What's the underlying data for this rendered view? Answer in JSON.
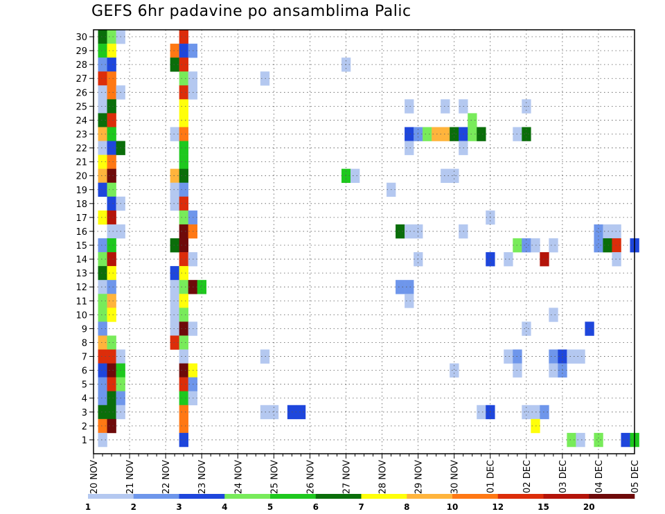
{
  "chart_data": {
    "type": "heatmap",
    "title": "GEFS 6hr padavine po ansamblima Palic",
    "xlabel": "",
    "ylabel": "",
    "y_tick_labels": [
      "1",
      "2",
      "3",
      "4",
      "5",
      "6",
      "7",
      "8",
      "9",
      "10",
      "11",
      "12",
      "13",
      "14",
      "15",
      "16",
      "17",
      "18",
      "19",
      "20",
      "21",
      "22",
      "23",
      "24",
      "25",
      "26",
      "27",
      "28",
      "29",
      "30"
    ],
    "x_tick_labels": [
      "20 NOV",
      "21 NOV",
      "22 NOV",
      "23 NOV",
      "24 NOV",
      "25 NOV",
      "26 NOV",
      "27 NOV",
      "28 NOV",
      "29 NOV",
      "30 NOV",
      "01 DEC",
      "02 DEC",
      "03 DEC",
      "04 DEC",
      "05 DEC"
    ],
    "x_range_steps": [
      0,
      60
    ],
    "y_range_members": [
      0,
      30
    ],
    "grid": true,
    "colorbar": {
      "labels": [
        "1",
        "2",
        "3",
        "4",
        "5",
        "6",
        "7",
        "8",
        "10",
        "12",
        "15",
        "20"
      ],
      "colors": [
        "#b4c8f0",
        "#6e96eb",
        "#1e46dc",
        "#78eb5a",
        "#1ec81e",
        "#0a6e0a",
        "#ffff0a",
        "#ffb43c",
        "#ff7814",
        "#dc2d0a",
        "#b4140a",
        "#6e0a0a"
      ]
    },
    "cells": [
      [
        30,
        1,
        5
      ],
      [
        30,
        2,
        3
      ],
      [
        30,
        3,
        0
      ],
      [
        30,
        10,
        9
      ],
      [
        29,
        1,
        4
      ],
      [
        29,
        2,
        6
      ],
      [
        29,
        9,
        8
      ],
      [
        29,
        10,
        2
      ],
      [
        29,
        11,
        1
      ],
      [
        28,
        1,
        1
      ],
      [
        28,
        2,
        2
      ],
      [
        28,
        9,
        5
      ],
      [
        28,
        10,
        9
      ],
      [
        28,
        28,
        0
      ],
      [
        27,
        1,
        9
      ],
      [
        27,
        2,
        8
      ],
      [
        27,
        10,
        3
      ],
      [
        27,
        11,
        0
      ],
      [
        27,
        19,
        0
      ],
      [
        26,
        1,
        0
      ],
      [
        26,
        2,
        8
      ],
      [
        26,
        3,
        0
      ],
      [
        26,
        10,
        9
      ],
      [
        26,
        11,
        0
      ],
      [
        25,
        1,
        0
      ],
      [
        25,
        2,
        5
      ],
      [
        25,
        10,
        6
      ],
      [
        25,
        35,
        0
      ],
      [
        25,
        39,
        0
      ],
      [
        25,
        41,
        0
      ],
      [
        25,
        48,
        0
      ],
      [
        24,
        1,
        5
      ],
      [
        24,
        2,
        9
      ],
      [
        24,
        10,
        6
      ],
      [
        24,
        42,
        3
      ],
      [
        23,
        1,
        7
      ],
      [
        23,
        2,
        4
      ],
      [
        23,
        9,
        0
      ],
      [
        23,
        10,
        8
      ],
      [
        23,
        35,
        2
      ],
      [
        23,
        36,
        1
      ],
      [
        23,
        37,
        3
      ],
      [
        23,
        38,
        7
      ],
      [
        23,
        39,
        7
      ],
      [
        23,
        40,
        5
      ],
      [
        23,
        41,
        2
      ],
      [
        23,
        42,
        3
      ],
      [
        23,
        43,
        5
      ],
      [
        23,
        47,
        0
      ],
      [
        23,
        48,
        5
      ],
      [
        22,
        1,
        0
      ],
      [
        22,
        2,
        2
      ],
      [
        22,
        3,
        5
      ],
      [
        22,
        10,
        4
      ],
      [
        22,
        35,
        0
      ],
      [
        22,
        41,
        0
      ],
      [
        21,
        1,
        6
      ],
      [
        21,
        2,
        8
      ],
      [
        21,
        10,
        4
      ],
      [
        20,
        1,
        7
      ],
      [
        20,
        2,
        11
      ],
      [
        20,
        9,
        7
      ],
      [
        20,
        10,
        5
      ],
      [
        20,
        28,
        4
      ],
      [
        20,
        29,
        0
      ],
      [
        20,
        39,
        0
      ],
      [
        20,
        40,
        0
      ],
      [
        19,
        1,
        2
      ],
      [
        19,
        2,
        3
      ],
      [
        19,
        9,
        0
      ],
      [
        19,
        10,
        1
      ],
      [
        19,
        33,
        0
      ],
      [
        18,
        2,
        2
      ],
      [
        18,
        3,
        0
      ],
      [
        18,
        9,
        0
      ],
      [
        18,
        10,
        9
      ],
      [
        17,
        1,
        6
      ],
      [
        17,
        2,
        10
      ],
      [
        17,
        10,
        3
      ],
      [
        17,
        11,
        1
      ],
      [
        17,
        44,
        0
      ],
      [
        16,
        2,
        0
      ],
      [
        16,
        3,
        0
      ],
      [
        16,
        10,
        11
      ],
      [
        16,
        11,
        8
      ],
      [
        16,
        34,
        5
      ],
      [
        16,
        35,
        0
      ],
      [
        16,
        36,
        0
      ],
      [
        16,
        41,
        0
      ],
      [
        16,
        56,
        1
      ],
      [
        16,
        57,
        0
      ],
      [
        16,
        58,
        0
      ],
      [
        15,
        1,
        1
      ],
      [
        15,
        2,
        4
      ],
      [
        15,
        9,
        5
      ],
      [
        15,
        10,
        11
      ],
      [
        15,
        47,
        3
      ],
      [
        15,
        48,
        1
      ],
      [
        15,
        49,
        0
      ],
      [
        15,
        51,
        0
      ],
      [
        15,
        56,
        1
      ],
      [
        15,
        57,
        5
      ],
      [
        15,
        58,
        9
      ],
      [
        15,
        60,
        2
      ],
      [
        14,
        1,
        3
      ],
      [
        14,
        2,
        10
      ],
      [
        14,
        10,
        9
      ],
      [
        14,
        11,
        0
      ],
      [
        14,
        36,
        0
      ],
      [
        14,
        44,
        2
      ],
      [
        14,
        46,
        0
      ],
      [
        14,
        50,
        10
      ],
      [
        14,
        58,
        0
      ],
      [
        13,
        1,
        5
      ],
      [
        13,
        2,
        6
      ],
      [
        13,
        9,
        2
      ],
      [
        13,
        10,
        6
      ],
      [
        12,
        1,
        0
      ],
      [
        12,
        2,
        1
      ],
      [
        12,
        9,
        0
      ],
      [
        12,
        10,
        3
      ],
      [
        12,
        11,
        11
      ],
      [
        12,
        12,
        4
      ],
      [
        12,
        34,
        1
      ],
      [
        12,
        35,
        1
      ],
      [
        11,
        1,
        3
      ],
      [
        11,
        2,
        7
      ],
      [
        11,
        9,
        0
      ],
      [
        11,
        10,
        6
      ],
      [
        11,
        35,
        0
      ],
      [
        10,
        1,
        3
      ],
      [
        10,
        2,
        6
      ],
      [
        10,
        9,
        0
      ],
      [
        10,
        10,
        3
      ],
      [
        10,
        51,
        0
      ],
      [
        9,
        1,
        1
      ],
      [
        9,
        9,
        0
      ],
      [
        9,
        10,
        11
      ],
      [
        9,
        11,
        0
      ],
      [
        9,
        48,
        0
      ],
      [
        9,
        55,
        2
      ],
      [
        8,
        1,
        7
      ],
      [
        8,
        2,
        3
      ],
      [
        8,
        9,
        9
      ],
      [
        8,
        10,
        3
      ],
      [
        7,
        1,
        9
      ],
      [
        7,
        2,
        9
      ],
      [
        7,
        3,
        0
      ],
      [
        7,
        10,
        0
      ],
      [
        7,
        19,
        0
      ],
      [
        7,
        46,
        0
      ],
      [
        7,
        47,
        1
      ],
      [
        7,
        51,
        1
      ],
      [
        7,
        52,
        2
      ],
      [
        7,
        53,
        0
      ],
      [
        7,
        54,
        0
      ],
      [
        6,
        1,
        2
      ],
      [
        6,
        2,
        11
      ],
      [
        6,
        3,
        4
      ],
      [
        6,
        10,
        11
      ],
      [
        6,
        11,
        6
      ],
      [
        6,
        40,
        0
      ],
      [
        6,
        47,
        0
      ],
      [
        6,
        51,
        0
      ],
      [
        6,
        52,
        1
      ],
      [
        5,
        1,
        1
      ],
      [
        5,
        2,
        9
      ],
      [
        5,
        3,
        3
      ],
      [
        5,
        10,
        9
      ],
      [
        5,
        11,
        1
      ],
      [
        4,
        1,
        1
      ],
      [
        4,
        2,
        5
      ],
      [
        4,
        3,
        1
      ],
      [
        4,
        10,
        4
      ],
      [
        4,
        11,
        0
      ],
      [
        3,
        1,
        5
      ],
      [
        3,
        2,
        5
      ],
      [
        3,
        3,
        0
      ],
      [
        3,
        10,
        8
      ],
      [
        3,
        19,
        0
      ],
      [
        3,
        20,
        0
      ],
      [
        3,
        22,
        2
      ],
      [
        3,
        23,
        2
      ],
      [
        3,
        43,
        0
      ],
      [
        3,
        44,
        2
      ],
      [
        3,
        48,
        0
      ],
      [
        3,
        49,
        0
      ],
      [
        3,
        50,
        1
      ],
      [
        2,
        1,
        8
      ],
      [
        2,
        2,
        11
      ],
      [
        2,
        10,
        8
      ],
      [
        2,
        49,
        6
      ],
      [
        1,
        1,
        0
      ],
      [
        1,
        10,
        2
      ],
      [
        1,
        53,
        3
      ],
      [
        1,
        54,
        0
      ],
      [
        1,
        56,
        3
      ],
      [
        1,
        59,
        2
      ],
      [
        1,
        60,
        4
      ]
    ]
  }
}
